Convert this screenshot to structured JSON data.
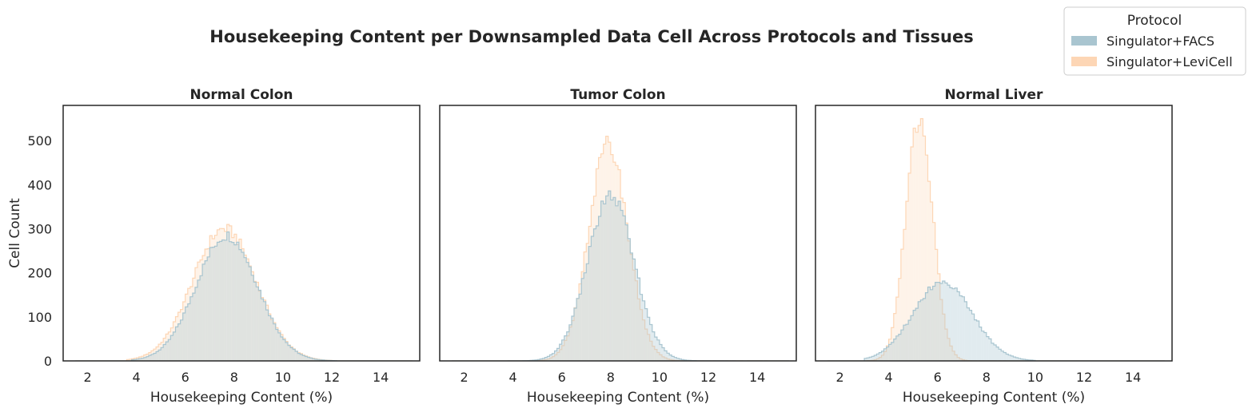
{
  "chart_data": {
    "type": "histogram",
    "title": "Housekeeping Content per Downsampled Data Cell Across Protocols and Tissues",
    "xlabel": "Housekeeping Content (%)",
    "ylabel": "Cell Count",
    "xlim": [
      1,
      15.6
    ],
    "ylim": [
      0,
      580
    ],
    "xticks": [
      2,
      4,
      6,
      8,
      10,
      12,
      14
    ],
    "yticks": [
      0,
      100,
      200,
      300,
      400,
      500
    ],
    "grid": false,
    "shared_y": true,
    "legend": {
      "title": "Protocol",
      "position": "top-right",
      "entries": [
        "Singulator+FACS",
        "Singulator+LeviCell"
      ]
    },
    "series_colors": {
      "Singulator+FACS": "#a9c5d0",
      "Singulator+LeviCell": "#fdd6b5"
    },
    "overlap_color": "#e8e6e2",
    "panels": [
      {
        "title": "Normal Colon",
        "series": [
          {
            "name": "Singulator+FACS",
            "mean": 7.7,
            "sd": 1.25,
            "peak": 285,
            "xmin": 3.8,
            "xmax": 12.2
          },
          {
            "name": "Singulator+LeviCell",
            "mean": 7.6,
            "sd": 1.3,
            "peak": 300,
            "xmin": 3.6,
            "xmax": 12.0
          }
        ]
      },
      {
        "title": "Tumor Colon",
        "series": [
          {
            "name": "Singulator+FACS",
            "mean": 8.0,
            "sd": 0.95,
            "peak": 375,
            "xmin": 3.8,
            "xmax": 13.2
          },
          {
            "name": "Singulator+LeviCell",
            "mean": 7.9,
            "sd": 0.8,
            "peak": 490,
            "xmin": 4.5,
            "xmax": 14.5
          }
        ]
      },
      {
        "title": "Normal Liver",
        "series": [
          {
            "name": "Singulator+FACS",
            "mean": 6.2,
            "sd": 1.2,
            "peak": 180,
            "xmin": 3.0,
            "xmax": 10.0
          },
          {
            "name": "Singulator+LeviCell",
            "mean": 5.25,
            "sd": 0.55,
            "peak": 550,
            "xmin": 3.0,
            "xmax": 9.0
          }
        ]
      }
    ]
  }
}
